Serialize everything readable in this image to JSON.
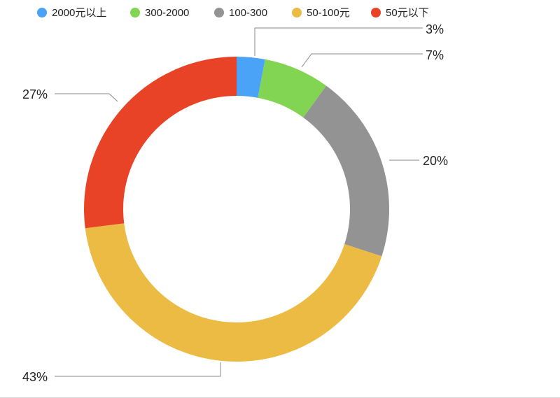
{
  "chart_data": {
    "type": "pie",
    "variant": "donut",
    "categories": [
      "2000元以上",
      "300-2000",
      "100-300",
      "50-100元",
      "50元以下"
    ],
    "values": [
      3,
      7,
      20,
      43,
      27
    ],
    "labels": [
      "3%",
      "7%",
      "20%",
      "43%",
      "27%"
    ],
    "colors": [
      "#4aa3f7",
      "#82d552",
      "#939393",
      "#ecbb43",
      "#e84327"
    ],
    "legend_position": "top",
    "start": "top",
    "direction": "clockwise"
  }
}
